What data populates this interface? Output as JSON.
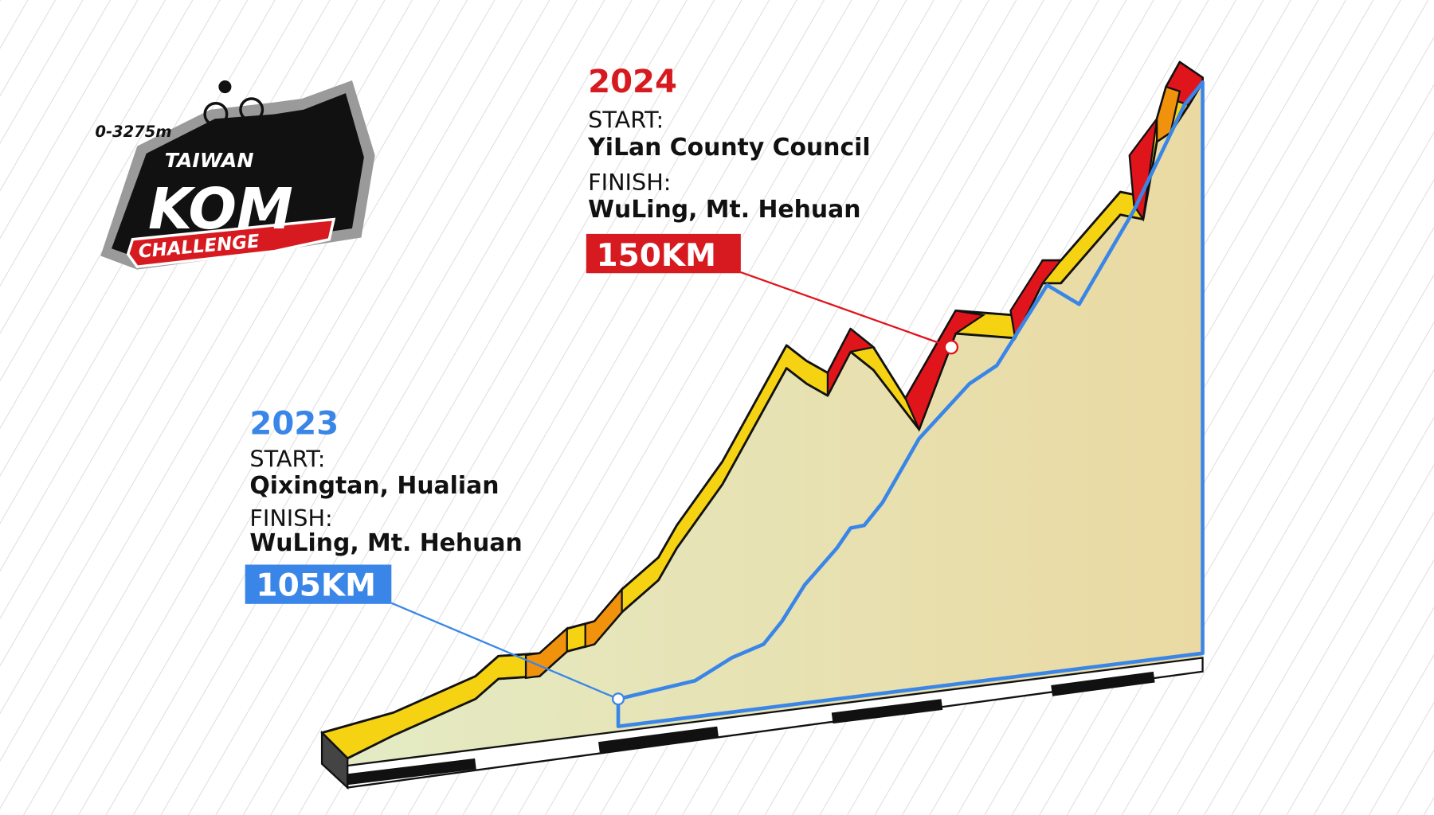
{
  "logo": {
    "distance_range": "0-3275m",
    "title_top": "TAIWAN",
    "title_main": "KOM",
    "title_bottom": "CHALLENGE"
  },
  "routes": [
    {
      "year": "2024",
      "start_label": "START:",
      "start": "YiLan County Council",
      "finish_label": "FINISH:",
      "finish": "WuLing, Mt. Hehuan",
      "distance": "150KM"
    },
    {
      "year": "2023",
      "start_label": "START:",
      "start": "Qixingtan, Hualian",
      "finish_label": "FINISH:",
      "finish": "WuLing, Mt. Hehuan",
      "distance": "105KM"
    }
  ]
}
